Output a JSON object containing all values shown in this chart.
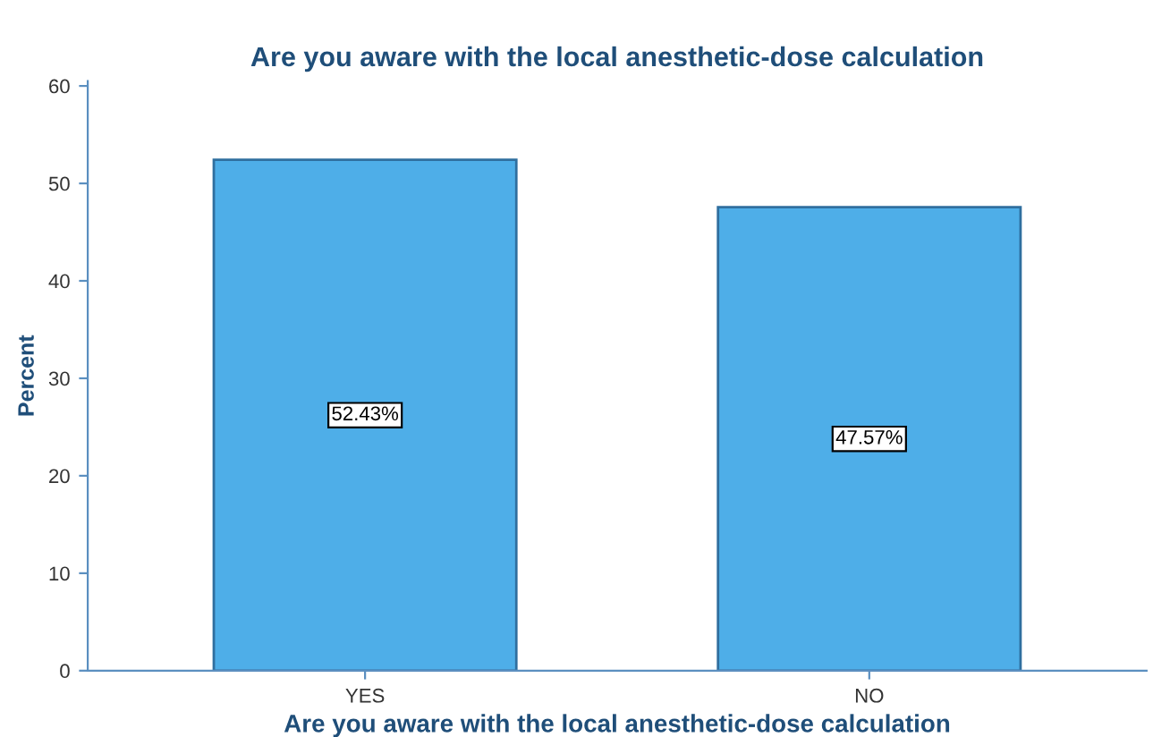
{
  "chart_data": {
    "type": "bar",
    "title": "Are you aware with the local anesthetic-dose calculation",
    "xlabel": "Are you aware with the local anesthetic-dose calculation",
    "ylabel": "Percent",
    "categories": [
      "YES",
      "NO"
    ],
    "values": [
      52.43,
      47.57
    ],
    "value_labels": [
      "52.43%",
      "47.57%"
    ],
    "color": "#4eaee8",
    "ylim": [
      0,
      60.5
    ],
    "yticks": [
      0,
      10,
      20,
      30,
      40,
      50,
      60
    ],
    "grid": false,
    "legend": false
  }
}
